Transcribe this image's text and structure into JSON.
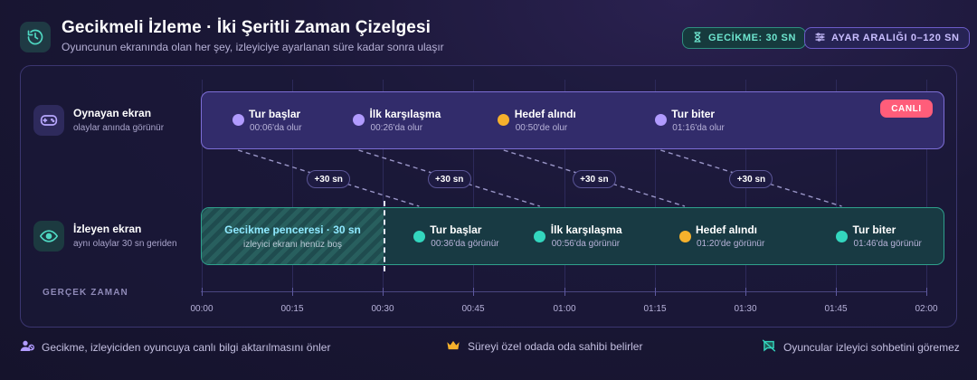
{
  "header": {
    "title": "Gecikmeli İzleme · İki Şeritli Zaman Çizelgesi",
    "subtitle": "Oyuncunun ekranında olan her şey, izleyiciye ayarlanan süre kadar sonra ulaşır",
    "delay_pill": "GECİKME: 30 SN",
    "range_pill": "AYAR ARALIĞI 0–120 SN"
  },
  "lanes": {
    "player": {
      "title": "Oynayan ekran",
      "subtitle": "olaylar anında görünür",
      "live_badge": "CANLI",
      "events": [
        {
          "name": "Tur başlar",
          "time_text": "00:06'da olur",
          "t": 6,
          "color": "purple"
        },
        {
          "name": "İlk karşılaşma",
          "time_text": "00:26'da olur",
          "t": 26,
          "color": "purple"
        },
        {
          "name": "Hedef alındı",
          "time_text": "00:50'de olur",
          "t": 50,
          "color": "orange"
        },
        {
          "name": "Tur biter",
          "time_text": "01:16'da olur",
          "t": 76,
          "color": "purple"
        }
      ]
    },
    "viewer": {
      "title": "İzleyen ekran",
      "subtitle": "aynı olaylar 30 sn geriden",
      "delay_window_title": "Gecikme penceresi · 30 sn",
      "delay_window_sub": "izleyici ekranı henüz boş",
      "events": [
        {
          "name": "Tur başlar",
          "time_text": "00:36'da görünür",
          "t": 36,
          "color": "teal"
        },
        {
          "name": "İlk karşılaşma",
          "time_text": "00:56'da görünür",
          "t": 56,
          "color": "teal"
        },
        {
          "name": "Hedef alındı",
          "time_text": "01:20'de görünür",
          "t": 80,
          "color": "orange"
        },
        {
          "name": "Tur biter",
          "time_text": "01:46'da görünür",
          "t": 106,
          "color": "teal"
        }
      ]
    }
  },
  "offset_label": "+30 sn",
  "axis": {
    "label": "GERÇEK ZAMAN",
    "ticks": [
      "00:00",
      "00:15",
      "00:30",
      "00:45",
      "01:00",
      "01:15",
      "01:30",
      "01:45",
      "02:00"
    ],
    "range_seconds": [
      0,
      120
    ]
  },
  "footer": [
    {
      "icon": "user-block-icon",
      "text": "Gecikme, izleyiciden oyuncuya canlı bilgi aktarılmasını önler"
    },
    {
      "icon": "crown-icon",
      "text": "Süreyi özel odada oda sahibi belirler"
    },
    {
      "icon": "chat-off-icon",
      "text": "Oyuncular izleyici sohbetini göremez"
    }
  ],
  "colors": {
    "player_track": "#322c6b",
    "viewer_track": "#183a43",
    "live": "#ff5d7a",
    "purple_dot": "#b19bff",
    "teal_dot": "#33d6be",
    "orange_dot": "#f6b12c"
  }
}
